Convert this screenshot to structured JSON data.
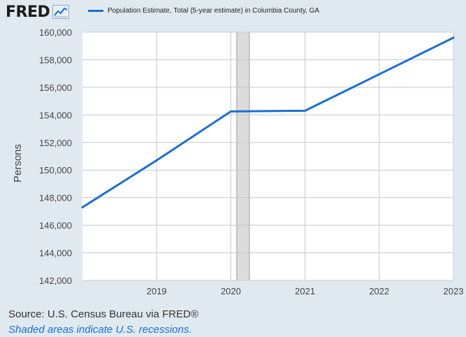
{
  "header": {
    "logo_text": "FRED",
    "logo_mark": "trend-line-icon"
  },
  "colors": {
    "series": "#1a6fd1",
    "recession": "#dcdcdc",
    "plot_bg": "#ffffff",
    "grid": "#c8c8c8"
  },
  "chart_data": {
    "type": "line",
    "title": "",
    "xlabel": "",
    "ylabel": "Persons",
    "series": [
      {
        "name": "Population Estimate, Total (5-year estimate) in Columbia County, GA",
        "x": [
          "2018",
          "2019",
          "2020",
          "2021",
          "2022",
          "2023"
        ],
        "values": [
          147300,
          150700,
          154250,
          154300,
          156950,
          159600
        ]
      }
    ],
    "x_ticks": [
      "2019",
      "2020",
      "2021",
      "2022",
      "2023"
    ],
    "x_range": [
      2018,
      2023
    ],
    "ylim": [
      142000,
      160000
    ],
    "y_ticks": [
      "142,000",
      "144,000",
      "146,000",
      "148,000",
      "150,000",
      "152,000",
      "154,000",
      "156,000",
      "158,000",
      "160,000"
    ],
    "recessions": [
      {
        "start": 2020.08,
        "end": 2020.25
      }
    ],
    "grid": true,
    "legend": "top"
  },
  "footer": {
    "source": "Source: U.S. Census Bureau via FRED®",
    "note": "Shaded areas indicate U.S. recessions."
  }
}
